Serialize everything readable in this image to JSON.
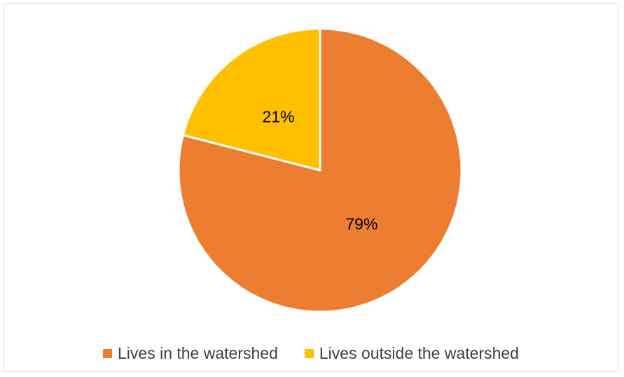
{
  "chart_data": {
    "type": "pie",
    "title": "",
    "slices": [
      {
        "label": "Lives in the watershed",
        "value": 79,
        "value_label": "79%",
        "color": "#ED7D31"
      },
      {
        "label": "Lives outside the watershed",
        "value": 21,
        "value_label": "21%",
        "color": "#FFC000"
      }
    ],
    "legend_position": "bottom",
    "start_angle": "top, clockwise"
  }
}
